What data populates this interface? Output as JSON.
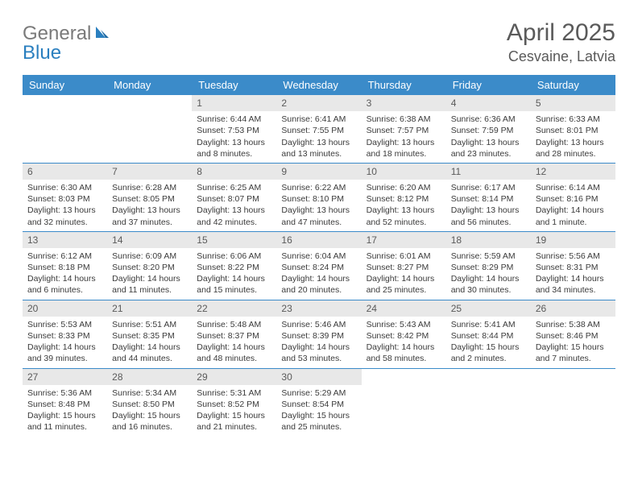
{
  "logo": {
    "text_left": "General",
    "text_right": "Blue"
  },
  "title": "April 2025",
  "location": "Cesvaine, Latvia",
  "colors": {
    "header_bar": "#3b8bc9",
    "daynum_bg": "#e8e8e8",
    "week_border": "#3b8bc9",
    "logo_gray": "#7a7a7a",
    "logo_blue": "#2a7fbf",
    "title_color": "#5a5a5a"
  },
  "weekdays": [
    "Sunday",
    "Monday",
    "Tuesday",
    "Wednesday",
    "Thursday",
    "Friday",
    "Saturday"
  ],
  "weeks": [
    [
      {
        "n": "",
        "sr": "",
        "ss": "",
        "dl": ""
      },
      {
        "n": "",
        "sr": "",
        "ss": "",
        "dl": ""
      },
      {
        "n": "1",
        "sr": "Sunrise: 6:44 AM",
        "ss": "Sunset: 7:53 PM",
        "dl": "Daylight: 13 hours and 8 minutes."
      },
      {
        "n": "2",
        "sr": "Sunrise: 6:41 AM",
        "ss": "Sunset: 7:55 PM",
        "dl": "Daylight: 13 hours and 13 minutes."
      },
      {
        "n": "3",
        "sr": "Sunrise: 6:38 AM",
        "ss": "Sunset: 7:57 PM",
        "dl": "Daylight: 13 hours and 18 minutes."
      },
      {
        "n": "4",
        "sr": "Sunrise: 6:36 AM",
        "ss": "Sunset: 7:59 PM",
        "dl": "Daylight: 13 hours and 23 minutes."
      },
      {
        "n": "5",
        "sr": "Sunrise: 6:33 AM",
        "ss": "Sunset: 8:01 PM",
        "dl": "Daylight: 13 hours and 28 minutes."
      }
    ],
    [
      {
        "n": "6",
        "sr": "Sunrise: 6:30 AM",
        "ss": "Sunset: 8:03 PM",
        "dl": "Daylight: 13 hours and 32 minutes."
      },
      {
        "n": "7",
        "sr": "Sunrise: 6:28 AM",
        "ss": "Sunset: 8:05 PM",
        "dl": "Daylight: 13 hours and 37 minutes."
      },
      {
        "n": "8",
        "sr": "Sunrise: 6:25 AM",
        "ss": "Sunset: 8:07 PM",
        "dl": "Daylight: 13 hours and 42 minutes."
      },
      {
        "n": "9",
        "sr": "Sunrise: 6:22 AM",
        "ss": "Sunset: 8:10 PM",
        "dl": "Daylight: 13 hours and 47 minutes."
      },
      {
        "n": "10",
        "sr": "Sunrise: 6:20 AM",
        "ss": "Sunset: 8:12 PM",
        "dl": "Daylight: 13 hours and 52 minutes."
      },
      {
        "n": "11",
        "sr": "Sunrise: 6:17 AM",
        "ss": "Sunset: 8:14 PM",
        "dl": "Daylight: 13 hours and 56 minutes."
      },
      {
        "n": "12",
        "sr": "Sunrise: 6:14 AM",
        "ss": "Sunset: 8:16 PM",
        "dl": "Daylight: 14 hours and 1 minute."
      }
    ],
    [
      {
        "n": "13",
        "sr": "Sunrise: 6:12 AM",
        "ss": "Sunset: 8:18 PM",
        "dl": "Daylight: 14 hours and 6 minutes."
      },
      {
        "n": "14",
        "sr": "Sunrise: 6:09 AM",
        "ss": "Sunset: 8:20 PM",
        "dl": "Daylight: 14 hours and 11 minutes."
      },
      {
        "n": "15",
        "sr": "Sunrise: 6:06 AM",
        "ss": "Sunset: 8:22 PM",
        "dl": "Daylight: 14 hours and 15 minutes."
      },
      {
        "n": "16",
        "sr": "Sunrise: 6:04 AM",
        "ss": "Sunset: 8:24 PM",
        "dl": "Daylight: 14 hours and 20 minutes."
      },
      {
        "n": "17",
        "sr": "Sunrise: 6:01 AM",
        "ss": "Sunset: 8:27 PM",
        "dl": "Daylight: 14 hours and 25 minutes."
      },
      {
        "n": "18",
        "sr": "Sunrise: 5:59 AM",
        "ss": "Sunset: 8:29 PM",
        "dl": "Daylight: 14 hours and 30 minutes."
      },
      {
        "n": "19",
        "sr": "Sunrise: 5:56 AM",
        "ss": "Sunset: 8:31 PM",
        "dl": "Daylight: 14 hours and 34 minutes."
      }
    ],
    [
      {
        "n": "20",
        "sr": "Sunrise: 5:53 AM",
        "ss": "Sunset: 8:33 PM",
        "dl": "Daylight: 14 hours and 39 minutes."
      },
      {
        "n": "21",
        "sr": "Sunrise: 5:51 AM",
        "ss": "Sunset: 8:35 PM",
        "dl": "Daylight: 14 hours and 44 minutes."
      },
      {
        "n": "22",
        "sr": "Sunrise: 5:48 AM",
        "ss": "Sunset: 8:37 PM",
        "dl": "Daylight: 14 hours and 48 minutes."
      },
      {
        "n": "23",
        "sr": "Sunrise: 5:46 AM",
        "ss": "Sunset: 8:39 PM",
        "dl": "Daylight: 14 hours and 53 minutes."
      },
      {
        "n": "24",
        "sr": "Sunrise: 5:43 AM",
        "ss": "Sunset: 8:42 PM",
        "dl": "Daylight: 14 hours and 58 minutes."
      },
      {
        "n": "25",
        "sr": "Sunrise: 5:41 AM",
        "ss": "Sunset: 8:44 PM",
        "dl": "Daylight: 15 hours and 2 minutes."
      },
      {
        "n": "26",
        "sr": "Sunrise: 5:38 AM",
        "ss": "Sunset: 8:46 PM",
        "dl": "Daylight: 15 hours and 7 minutes."
      }
    ],
    [
      {
        "n": "27",
        "sr": "Sunrise: 5:36 AM",
        "ss": "Sunset: 8:48 PM",
        "dl": "Daylight: 15 hours and 11 minutes."
      },
      {
        "n": "28",
        "sr": "Sunrise: 5:34 AM",
        "ss": "Sunset: 8:50 PM",
        "dl": "Daylight: 15 hours and 16 minutes."
      },
      {
        "n": "29",
        "sr": "Sunrise: 5:31 AM",
        "ss": "Sunset: 8:52 PM",
        "dl": "Daylight: 15 hours and 21 minutes."
      },
      {
        "n": "30",
        "sr": "Sunrise: 5:29 AM",
        "ss": "Sunset: 8:54 PM",
        "dl": "Daylight: 15 hours and 25 minutes."
      },
      {
        "n": "",
        "sr": "",
        "ss": "",
        "dl": ""
      },
      {
        "n": "",
        "sr": "",
        "ss": "",
        "dl": ""
      },
      {
        "n": "",
        "sr": "",
        "ss": "",
        "dl": ""
      }
    ]
  ]
}
